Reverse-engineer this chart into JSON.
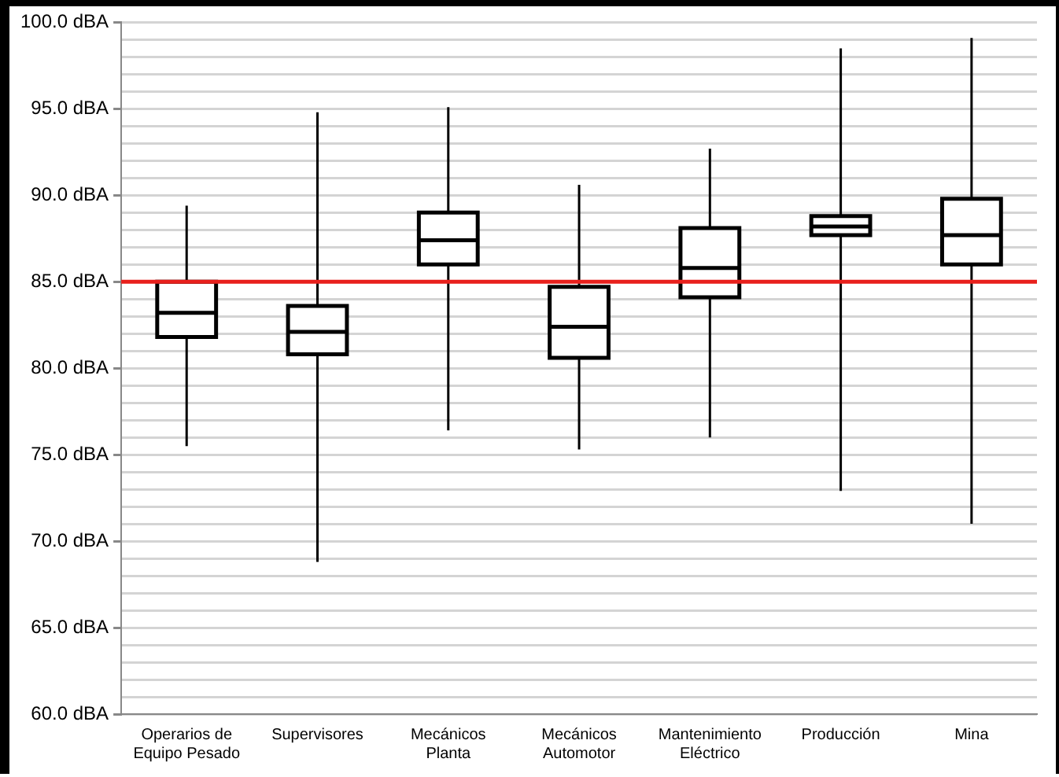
{
  "chart_data": {
    "type": "box",
    "categories": [
      "Operarios de Equipo Pesado",
      "Supervisores",
      "Mecánicos Planta",
      "Mecánicos Automotor",
      "Mantenimiento Eléctrico",
      "Producción",
      "Mina"
    ],
    "boxes": [
      {
        "low": 75.5,
        "q1": 81.8,
        "median": 83.2,
        "q3": 85.0,
        "high": 89.4
      },
      {
        "low": 68.8,
        "q1": 80.8,
        "median": 82.1,
        "q3": 83.6,
        "high": 94.8
      },
      {
        "low": 76.4,
        "q1": 86.0,
        "median": 87.4,
        "q3": 89.0,
        "high": 95.1
      },
      {
        "low": 75.3,
        "q1": 80.6,
        "median": 82.4,
        "q3": 84.7,
        "high": 90.6
      },
      {
        "low": 76.0,
        "q1": 84.1,
        "median": 85.8,
        "q3": 88.1,
        "high": 92.7
      },
      {
        "low": 72.9,
        "q1": 87.7,
        "median": 88.2,
        "q3": 88.8,
        "high": 98.5
      },
      {
        "low": 71.0,
        "q1": 86.0,
        "median": 87.7,
        "q3": 89.8,
        "high": 99.1
      }
    ],
    "ylim": [
      60,
      100
    ],
    "yticks": [
      {
        "value": 60,
        "label": "60.0 dBA"
      },
      {
        "value": 61,
        "label": null
      },
      {
        "value": 62,
        "label": null
      },
      {
        "value": 63,
        "label": null
      },
      {
        "value": 64,
        "label": null
      },
      {
        "value": 65,
        "label": "65.0 dBA"
      },
      {
        "value": 66,
        "label": null
      },
      {
        "value": 67,
        "label": null
      },
      {
        "value": 68,
        "label": null
      },
      {
        "value": 69,
        "label": null
      },
      {
        "value": 70,
        "label": "70.0 dBA"
      },
      {
        "value": 71,
        "label": null
      },
      {
        "value": 72,
        "label": null
      },
      {
        "value": 73,
        "label": null
      },
      {
        "value": 74,
        "label": null
      },
      {
        "value": 75,
        "label": "75.0 dBA"
      },
      {
        "value": 76,
        "label": null
      },
      {
        "value": 77,
        "label": null
      },
      {
        "value": 78,
        "label": null
      },
      {
        "value": 79,
        "label": null
      },
      {
        "value": 80,
        "label": "80.0 dBA"
      },
      {
        "value": 81,
        "label": null
      },
      {
        "value": 82,
        "label": null
      },
      {
        "value": 83,
        "label": null
      },
      {
        "value": 84,
        "label": null
      },
      {
        "value": 85,
        "label": "85.0 dBA"
      },
      {
        "value": 86,
        "label": null
      },
      {
        "value": 87,
        "label": null
      },
      {
        "value": 88,
        "label": null
      },
      {
        "value": 89,
        "label": null
      },
      {
        "value": 90,
        "label": "90.0 dBA"
      },
      {
        "value": 91,
        "label": null
      },
      {
        "value": 92,
        "label": null
      },
      {
        "value": 93,
        "label": null
      },
      {
        "value": 94,
        "label": null
      },
      {
        "value": 95,
        "label": "95.0 dBA"
      },
      {
        "value": 96,
        "label": null
      },
      {
        "value": 97,
        "label": null
      },
      {
        "value": 98,
        "label": null
      },
      {
        "value": 99,
        "label": null
      },
      {
        "value": 100,
        "label": "100.0 dBA"
      }
    ],
    "grid": "y",
    "ref_lines": [
      {
        "axis": "y",
        "value": 85,
        "color": "#e8201c"
      }
    ]
  }
}
